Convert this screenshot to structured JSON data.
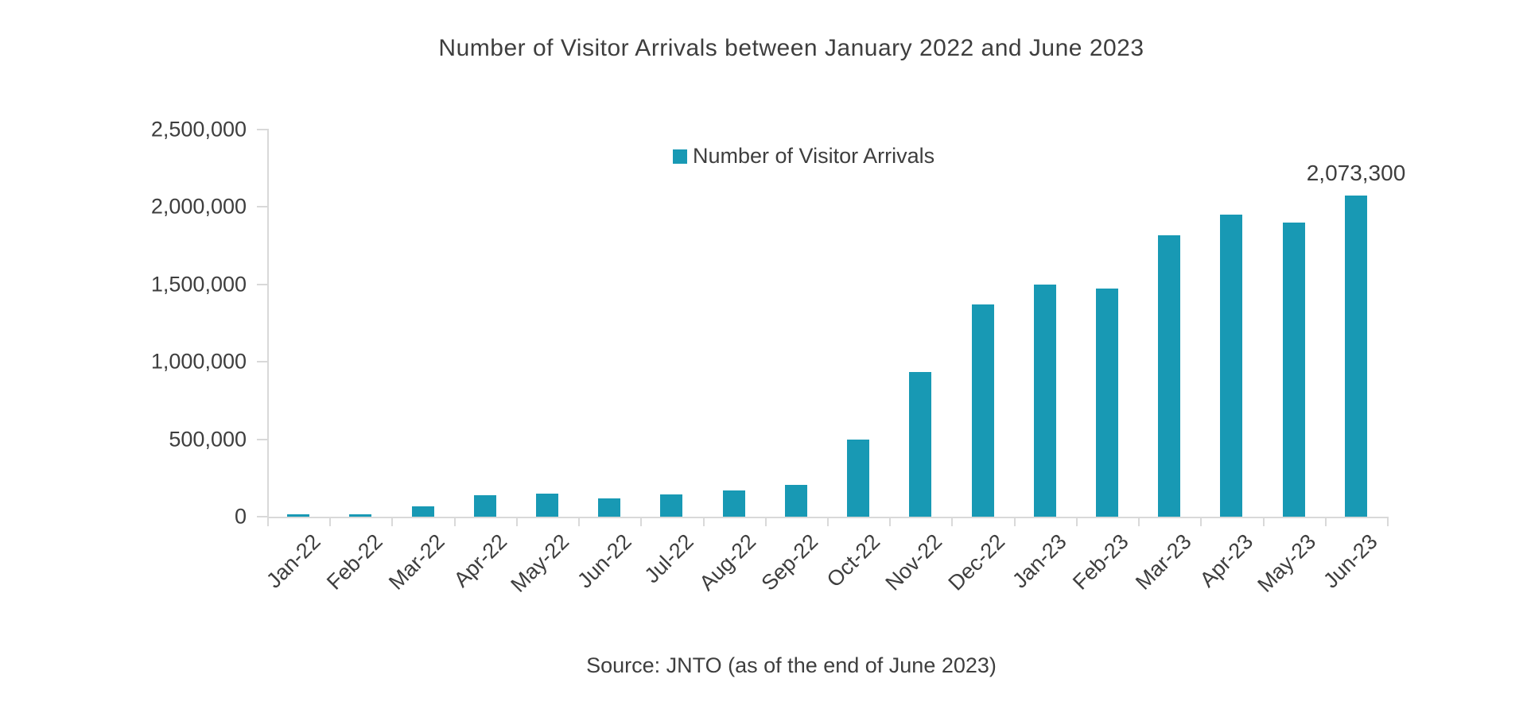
{
  "title": "Number of Visitor Arrivals between January 2022 and June 2023",
  "legend": {
    "label": "Number of Visitor Arrivals"
  },
  "annotation": "2,073,300",
  "source": "Source: JNTO (as of the end of June 2023)",
  "colors": {
    "bar": "#1899B4",
    "text": "#3E3E3E",
    "axis_line": "#D9D9D9",
    "background": "#FFFFFF"
  },
  "chart_data": {
    "type": "bar",
    "title": "Number of Visitor Arrivals between January 2022 and June 2023",
    "series_name": "Number of Visitor Arrivals",
    "categories": [
      "Jan-22",
      "Feb-22",
      "Mar-22",
      "Apr-22",
      "May-22",
      "Jun-22",
      "Jul-22",
      "Aug-22",
      "Sep-22",
      "Oct-22",
      "Nov-22",
      "Dec-22",
      "Jan-23",
      "Feb-23",
      "Mar-23",
      "Apr-23",
      "May-23",
      "Jun-23"
    ],
    "values": [
      17766,
      16719,
      66121,
      139548,
      147046,
      120430,
      144578,
      169902,
      206641,
      498646,
      934599,
      1370114,
      1497472,
      1475455,
      1817616,
      1949236,
      1898945,
      2073300
    ],
    "xlabel": "",
    "ylabel": "",
    "ylim": [
      0,
      2500000
    ],
    "yticks": [
      0,
      500000,
      1000000,
      1500000,
      2000000,
      2500000
    ],
    "ytick_labels": [
      "0",
      "500,000",
      "1,000,000",
      "1,500,000",
      "2,000,000",
      "2,500,000"
    ],
    "grid": false,
    "legend_position": "top-center-inside",
    "bar_color": "#1899B4",
    "data_labels": [
      {
        "category": "Jun-23",
        "text": "2,073,300"
      }
    ],
    "source_note": "Source: JNTO (as of the end of June 2023)"
  }
}
